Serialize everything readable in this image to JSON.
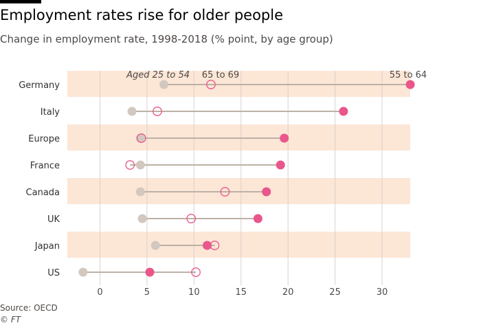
{
  "title": "Employment rates rise for older people",
  "subtitle": "Change in employment rate, 1998-2018 (% point, by age group)",
  "source": "Source: OECD",
  "copyright": "© FT",
  "colors": {
    "band": "#fce6d6",
    "grid": "#d9d2cc",
    "connector": "#bdb0a6",
    "aged_25_54": "#d2c8c0",
    "age_55_64": "#e9568b",
    "age_65_69": "#e9568b"
  },
  "chart_data": {
    "type": "dot-range",
    "title": "Employment rates rise for older people",
    "subtitle": "Change in employment rate, 1998-2018 (% point, by age group)",
    "xlim": [
      -2.5,
      34
    ],
    "xticks": [
      0,
      5,
      10,
      15,
      20,
      25,
      30
    ],
    "xtick_labels": [
      "0",
      "5",
      "10",
      "15",
      "20",
      "25",
      "30"
    ],
    "categories": [
      "Germany",
      "Italy",
      "Europe",
      "France",
      "Canada",
      "UK",
      "Japan",
      "US"
    ],
    "series": [
      {
        "name": "Aged 25 to 54",
        "marker": "filled-grey",
        "values": [
          6.8,
          3.4,
          4.3,
          4.3,
          4.3,
          4.5,
          5.9,
          -1.8
        ]
      },
      {
        "name": "65 to 69",
        "marker": "open-pink",
        "values": [
          11.8,
          6.1,
          4.4,
          3.2,
          13.3,
          9.7,
          12.2,
          10.2
        ]
      },
      {
        "name": "55 to 64",
        "marker": "filled-pink",
        "values": [
          33.0,
          25.9,
          19.6,
          19.2,
          17.7,
          16.8,
          11.4,
          5.3
        ]
      }
    ],
    "legend": {
      "aged_25_54": "Aged 25 to 54",
      "age_65_69": "65 to 69",
      "age_55_64": "55 to 64"
    }
  }
}
